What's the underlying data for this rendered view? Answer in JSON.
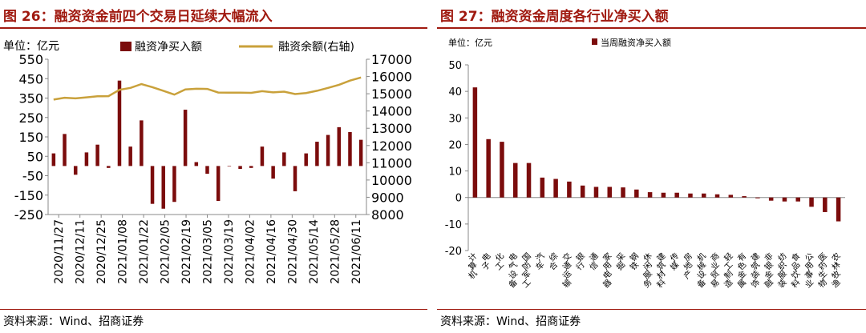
{
  "left": {
    "title": "图 26：融资资金前四个交易日延续大幅流入",
    "unit": "单位：亿元",
    "source": "资料来源：Wind、招商证券",
    "legend_bar": "融资净买入额",
    "legend_line": "融资余额(右轴)",
    "left_ticks": [
      "550",
      "450",
      "350",
      "250",
      "150",
      "50",
      "-50",
      "-150",
      "-250"
    ],
    "right_ticks": [
      "17000",
      "16000",
      "15000",
      "14000",
      "13000",
      "12000",
      "11000",
      "10000",
      "9000",
      "8000"
    ],
    "x_ticks": [
      "2020/11/27",
      "2020/12/11",
      "2020/12/25",
      "2021/01/08",
      "2021/01/22",
      "2021/02/05",
      "2021/02/19",
      "2021/03/05",
      "2021/03/19",
      "2021/04/02",
      "2021/04/16",
      "2021/04/30",
      "2021/05/14",
      "2021/05/28",
      "2021/06/11"
    ]
  },
  "right": {
    "title": "图 27：融资资金周度各行业净买入额",
    "unit": "单位：亿元",
    "legend": "当周融资净买入额",
    "y_ticks": [
      "50",
      "40",
      "30",
      "20",
      "10",
      "0",
      "-10",
      "-20"
    ],
    "source": "资料来源：Wind、招商证券"
  },
  "colors": {
    "bar": "#7b0c0c",
    "line": "#c9a13b",
    "title": "#a01a10"
  },
  "chart_data": [
    {
      "type": "bar+line",
      "title": "融资资金前四个交易日延续大幅流入",
      "ylabel": "单位：亿元",
      "ylim": [
        -250,
        550
      ],
      "y2lim": [
        8000,
        17000
      ],
      "series": [
        {
          "name": "融资净买入额",
          "type": "bar",
          "values": [
            65,
            165,
            -45,
            70,
            110,
            -10,
            440,
            100,
            235,
            -195,
            -220,
            -185,
            290,
            20,
            -40,
            -180,
            0,
            -15,
            -10,
            100,
            -65,
            70,
            -130,
            65,
            125,
            160,
            200,
            175,
            135
          ]
        },
        {
          "name": "融资余额(右轴)",
          "type": "line",
          "axis": "right",
          "values": [
            14660,
            14770,
            14730,
            14790,
            14850,
            14860,
            15230,
            15340,
            15560,
            15380,
            15170,
            14950,
            15250,
            15290,
            15280,
            15070,
            15060,
            15060,
            15050,
            15150,
            15080,
            15120,
            14980,
            15040,
            15170,
            15340,
            15520,
            15760,
            15940
          ]
        }
      ],
      "x_ticks": [
        "2020/11/27",
        "2020/12/11",
        "2020/12/25",
        "2021/01/08",
        "2021/01/22",
        "2021/02/05",
        "2021/02/19",
        "2021/03/05",
        "2021/03/19",
        "2021/04/02",
        "2021/04/16",
        "2021/04/30",
        "2021/05/14",
        "2021/05/28",
        "2021/06/11"
      ]
    },
    {
      "type": "bar",
      "title": "融资资金周度各行业净买入额",
      "ylabel": "单位：亿元",
      "ylim": [
        -20,
        50
      ],
      "legend": "当周融资净买入额",
      "categories": [
        "计算机",
        "电子",
        "化工",
        "电气设备",
        "国防军工",
        "汽车",
        "综合",
        "交通运输",
        "银行",
        "通信",
        "家用电器",
        "采掘",
        "钢铁",
        "休闲服务",
        "建筑材料",
        "传媒",
        "房地产",
        "机械设备",
        "商业贸易",
        "轻工制造",
        "有色金属",
        "建筑装饰",
        "非银金融",
        "纺织服装",
        "食品饮料",
        "公用事业",
        "医药生物",
        "农林牧渔"
      ],
      "values": [
        41.5,
        22,
        21,
        13,
        13,
        7.5,
        7,
        6,
        4.5,
        4,
        4,
        3.8,
        3,
        2,
        1.8,
        1.8,
        1.5,
        1.5,
        1.2,
        1,
        0.5,
        -0.3,
        -1.2,
        -1.5,
        -1.5,
        -3.5,
        -5.5,
        -9
      ]
    }
  ]
}
